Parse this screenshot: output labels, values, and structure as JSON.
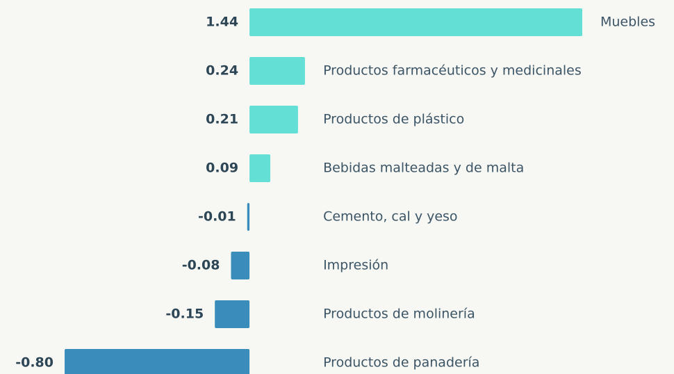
{
  "chart_data": {
    "type": "bar",
    "orientation": "horizontal",
    "categories": [
      "Muebles",
      "Productos farmacéuticos y medicinales",
      "Productos de plástico",
      "Bebidas malteadas y de malta",
      "Cemento, cal y yeso",
      "Impresión",
      "Productos de molinería",
      "Productos de panadería"
    ],
    "values": [
      1.44,
      0.24,
      0.21,
      0.09,
      -0.01,
      -0.08,
      -0.15,
      -0.8
    ],
    "value_labels": [
      "1.44",
      "0.24",
      "0.21",
      "0.09",
      "-0.01",
      "-0.08",
      "-0.15",
      "-0.80"
    ],
    "color_positive": "#63dfd6",
    "color_negative": "#3a8cba"
  }
}
